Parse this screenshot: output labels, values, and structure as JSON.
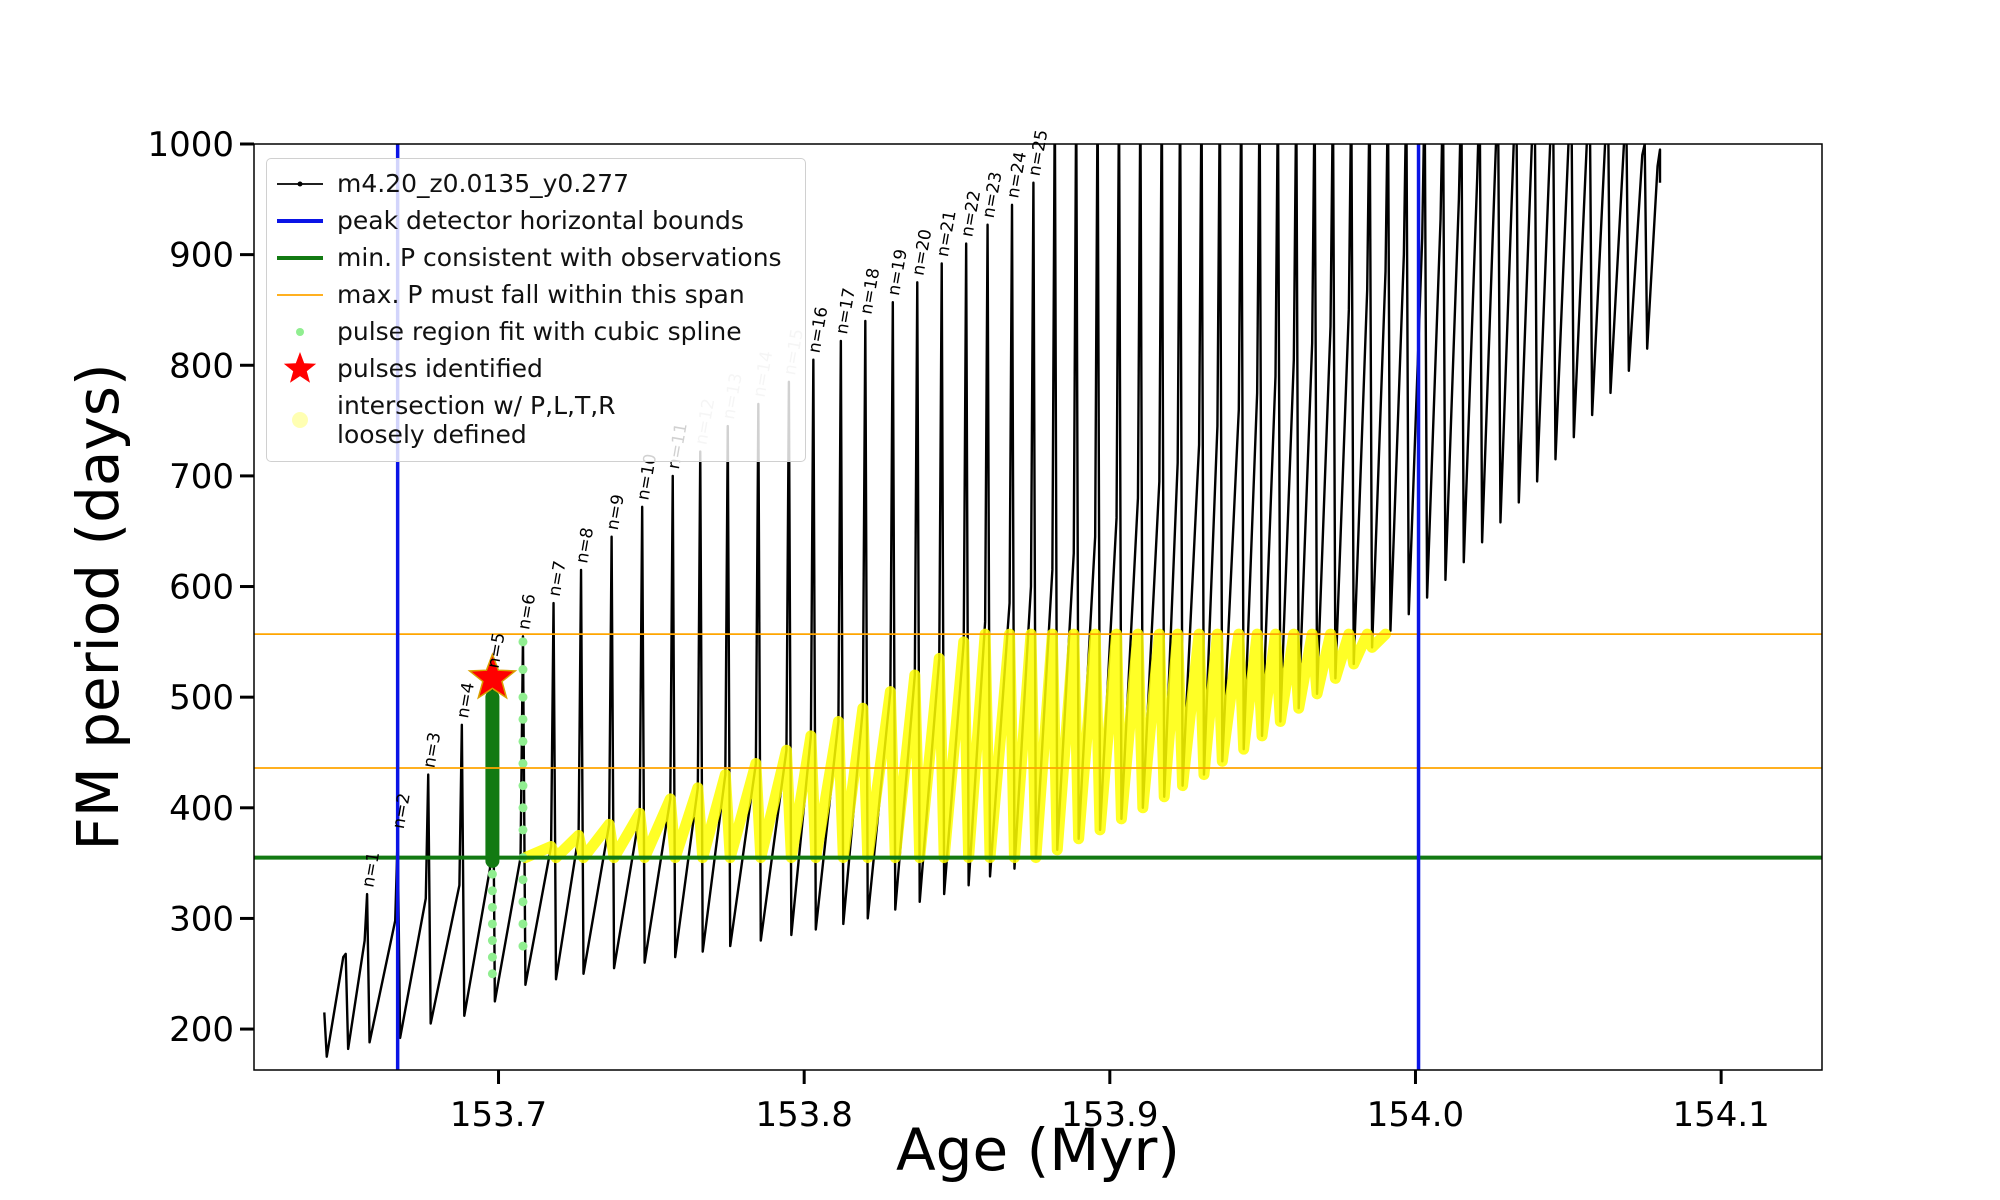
{
  "chart_data": {
    "type": "line",
    "x_label": "Age (Myr)",
    "y_label": "FM period (days)",
    "xlim": [
      153.62,
      154.133
    ],
    "ylim": [
      163,
      1000
    ],
    "xticks": [
      153.7,
      153.8,
      153.9,
      {
        "value": 154,
        "label": "154.0"
      },
      154.1
    ],
    "yticks": [
      200,
      300,
      400,
      500,
      600,
      700,
      800,
      900,
      1000
    ],
    "legend": "upper left",
    "series": [
      {
        "name": "m4.20_z0.0135_y0.277",
        "color": "#000000",
        "style": "line",
        "x": [
          153.643,
          153.6438,
          153.6492,
          153.65,
          153.6508,
          153.6562,
          153.657,
          153.6578,
          153.6662,
          153.667,
          153.6678,
          153.6762,
          153.677,
          153.6778,
          153.6872,
          153.688,
          153.6888,
          153.6972,
          153.698,
          153.6988,
          153.7072,
          153.708,
          153.7088,
          153.7172,
          153.718,
          153.7188,
          153.7262,
          153.727,
          153.7278,
          153.7362,
          153.737,
          153.7378,
          153.7462,
          153.747,
          153.7478,
          153.7562,
          153.757,
          153.7578,
          153.7652,
          153.766,
          153.7668,
          153.7742,
          153.775,
          153.7758,
          153.7842,
          153.785,
          153.7858,
          153.7942,
          153.795,
          153.7958,
          153.8022,
          153.803,
          153.8038,
          153.8112,
          153.812,
          153.8128,
          153.8192,
          153.82,
          153.8208,
          153.8282,
          153.829,
          153.8298,
          153.8362,
          153.837,
          153.8378,
          153.8442,
          153.845,
          153.8458,
          153.8522,
          153.853,
          153.8538,
          153.8592,
          153.86,
          153.8608,
          153.8672,
          153.868,
          153.8688,
          153.8742,
          153.875,
          153.8758,
          153.8812,
          153.882,
          153.8828,
          153.8882,
          153.889,
          153.8898,
          153.8952,
          153.896,
          153.8968,
          153.9022,
          153.903,
          153.9038,
          153.9092,
          153.91,
          153.9108,
          153.9162,
          153.917,
          153.9178,
          153.9222,
          153.923,
          153.9238,
          153.9292,
          153.93,
          153.9308,
          153.9352,
          153.936,
          153.9368,
          153.9422,
          153.943,
          153.9438,
          153.9482,
          153.949,
          153.9498,
          153.9542,
          153.955,
          153.9558,
          153.9602,
          153.961,
          153.9618,
          153.9662,
          153.967,
          153.9678,
          153.9722,
          153.973,
          153.9738,
          153.9782,
          153.979,
          153.9798,
          153.9842,
          153.985,
          153.9858,
          153.9902,
          153.991,
          153.9918,
          153.9962,
          153.997,
          153.9978,
          154.0022,
          154.003,
          154.0038,
          154.0082,
          154.009,
          154.0098,
          154.0142,
          154.015,
          154.0158,
          154.0202,
          154.021,
          154.0218,
          154.0262,
          154.027,
          154.0278,
          154.0322,
          154.033,
          154.0338,
          154.0382,
          154.039,
          154.0398,
          154.0442,
          154.045,
          154.0458,
          154.0502,
          154.051,
          154.0518,
          154.0562,
          154.057,
          154.0578,
          154.0622,
          154.063,
          154.0638,
          154.0682,
          154.069,
          154.0698,
          154.0742,
          154.075,
          154.0758,
          154.0792,
          154.08,
          154.08
        ],
        "values": [
          215,
          175,
          265,
          268,
          182,
          280,
          322,
          188,
          298,
          375,
          192,
          318,
          430,
          205,
          330,
          475,
          212,
          345,
          520,
          225,
          355,
          555,
          240,
          365,
          585,
          245,
          375,
          615,
          250,
          385,
          645,
          255,
          395,
          672,
          260,
          408,
          700,
          265,
          418,
          722,
          270,
          430,
          745,
          275,
          440,
          765,
          280,
          452,
          785,
          285,
          465,
          805,
          290,
          478,
          822,
          295,
          490,
          840,
          300,
          505,
          857,
          308,
          520,
          875,
          315,
          535,
          892,
          322,
          550,
          910,
          330,
          568,
          927,
          338,
          585,
          945,
          345,
          600,
          965,
          355,
          615,
          1050,
          362,
          630,
          1050,
          372,
          645,
          1050,
          380,
          662,
          1050,
          390,
          680,
          1050,
          400,
          695,
          1050,
          410,
          712,
          1050,
          420,
          728,
          1050,
          430,
          745,
          1050,
          442,
          760,
          1050,
          453,
          775,
          1050,
          465,
          790,
          1050,
          478,
          805,
          1050,
          490,
          820,
          1050,
          503,
          835,
          1050,
          517,
          850,
          1050,
          530,
          868,
          1050,
          545,
          885,
          1050,
          560,
          900,
          1050,
          575,
          915,
          1050,
          590,
          932,
          1050,
          606,
          950,
          1050,
          622,
          970,
          1050,
          640,
          990,
          1050,
          658,
          1005,
          1050,
          676,
          1010,
          1050,
          695,
          1010,
          1050,
          715,
          1010,
          1050,
          735,
          1010,
          1050,
          755,
          1010,
          1040,
          775,
          1000,
          1020,
          795,
          990,
          1000,
          815,
          980,
          995,
          965
        ]
      },
      {
        "name": "intersection w/ P,L,T,R\nloosely defined",
        "color": "#ffff00",
        "style": "band",
        "x": [
          153.7088,
          153.7172,
          153.7188,
          153.7262,
          153.7278,
          153.7362,
          153.7378,
          153.7462,
          153.7478,
          153.7562,
          153.7578,
          153.7652,
          153.7668,
          153.7742,
          153.7758,
          153.7842,
          153.7858,
          153.7942,
          153.7958,
          153.8022,
          153.8038,
          153.8112,
          153.8128,
          153.8192,
          153.8208,
          153.8282,
          153.8298,
          153.8362,
          153.8378,
          153.8442,
          153.8458,
          153.8522,
          153.8538,
          153.8592,
          153.8608,
          153.8672,
          153.8688,
          153.8742,
          153.8758,
          153.8812,
          153.8828,
          153.8882,
          153.8898,
          153.8952,
          153.8968,
          153.9022,
          153.9038,
          153.9092,
          153.9108,
          153.9162,
          153.9178,
          153.9222,
          153.9238,
          153.9292,
          153.9308,
          153.9352,
          153.9368,
          153.9422,
          153.9438,
          153.9482,
          153.9498,
          153.9542,
          153.9558,
          153.9602,
          153.9618,
          153.9662,
          153.9678,
          153.9722,
          153.9738,
          153.9782,
          153.9798,
          153.9842,
          153.9858,
          153.9902
        ],
        "values": [
          355,
          365,
          355,
          375,
          355,
          385,
          355,
          395,
          355,
          408,
          355,
          418,
          355,
          430,
          355,
          440,
          355,
          452,
          355,
          465,
          355,
          478,
          355,
          490,
          355,
          505,
          355,
          520,
          355,
          535,
          355,
          550,
          355,
          557,
          355,
          557,
          355,
          557,
          355,
          557,
          362,
          557,
          372,
          557,
          380,
          557,
          390,
          557,
          400,
          557,
          410,
          557,
          420,
          557,
          430,
          557,
          442,
          557,
          453,
          557,
          465,
          557,
          478,
          557,
          490,
          557,
          503,
          557,
          517,
          557,
          530,
          557,
          545,
          557
        ]
      },
      {
        "name": "pulse region fit with cubic spline",
        "color": "#90ee90",
        "style": "points",
        "x": [
          153.698,
          153.698,
          153.698,
          153.698,
          153.698,
          153.698,
          153.698,
          153.708,
          153.708,
          153.708,
          153.708,
          153.708,
          153.708,
          153.708,
          153.708,
          153.708,
          153.708,
          153.708,
          153.708,
          153.708,
          153.708
        ],
        "values": [
          250,
          265,
          280,
          295,
          310,
          325,
          340,
          275,
          295,
          315,
          335,
          355,
          380,
          400,
          420,
          440,
          460,
          480,
          500,
          525,
          550
        ]
      },
      {
        "color": "#127a12",
        "style": "thick",
        "x": [
          153.698,
          153.698
        ],
        "values": [
          352,
          500
        ]
      },
      {
        "name": "pulses identified",
        "color": "#ff0000",
        "style": "star",
        "x": [
          153.698
        ],
        "values": [
          517
        ]
      }
    ],
    "vlines": {
      "name": "peak detector horizontal bounds",
      "color": "#0a14e6",
      "values": [
        153.667,
        154.001
      ]
    },
    "hline_min": {
      "name": "min. P consistent with observations",
      "color": "#127a12",
      "value": 355
    },
    "hlines_max": {
      "name": "max. P must fall within this span",
      "color": "#ffa500",
      "values": [
        436,
        557
      ]
    },
    "annotations": [
      {
        "text": "n=1",
        "x": 153.657,
        "y": 322
      },
      {
        "text": "n=2",
        "x": 153.667,
        "y": 375
      },
      {
        "text": "n=3",
        "x": 153.677,
        "y": 430
      },
      {
        "text": "n=4",
        "x": 153.688,
        "y": 475
      },
      {
        "text": "n=5",
        "x": 153.698,
        "y": 520
      },
      {
        "text": "n=6",
        "x": 153.708,
        "y": 555
      },
      {
        "text": "n=7",
        "x": 153.718,
        "y": 585
      },
      {
        "text": "n=8",
        "x": 153.727,
        "y": 615
      },
      {
        "text": "n=9",
        "x": 153.737,
        "y": 645
      },
      {
        "text": "n=10",
        "x": 153.747,
        "y": 672
      },
      {
        "text": "n=11",
        "x": 153.757,
        "y": 700
      },
      {
        "text": "n=12",
        "x": 153.766,
        "y": 722,
        "color": "#c8c8c8"
      },
      {
        "text": "n=13",
        "x": 153.775,
        "y": 745,
        "color": "#c8c8c8"
      },
      {
        "text": "n=14",
        "x": 153.785,
        "y": 765,
        "color": "#c8c8c8"
      },
      {
        "text": "n=15",
        "x": 153.795,
        "y": 785,
        "color": "#c8c8c8"
      },
      {
        "text": "n=16",
        "x": 153.803,
        "y": 805
      },
      {
        "text": "n=17",
        "x": 153.812,
        "y": 822
      },
      {
        "text": "n=18",
        "x": 153.82,
        "y": 840
      },
      {
        "text": "n=19",
        "x": 153.829,
        "y": 857
      },
      {
        "text": "n=20",
        "x": 153.837,
        "y": 875
      },
      {
        "text": "n=21",
        "x": 153.845,
        "y": 892
      },
      {
        "text": "n=22",
        "x": 153.853,
        "y": 910
      },
      {
        "text": "n=23",
        "x": 153.86,
        "y": 927
      },
      {
        "text": "n=24",
        "x": 153.868,
        "y": 945
      },
      {
        "text": "n=25",
        "x": 153.875,
        "y": 965
      }
    ]
  }
}
